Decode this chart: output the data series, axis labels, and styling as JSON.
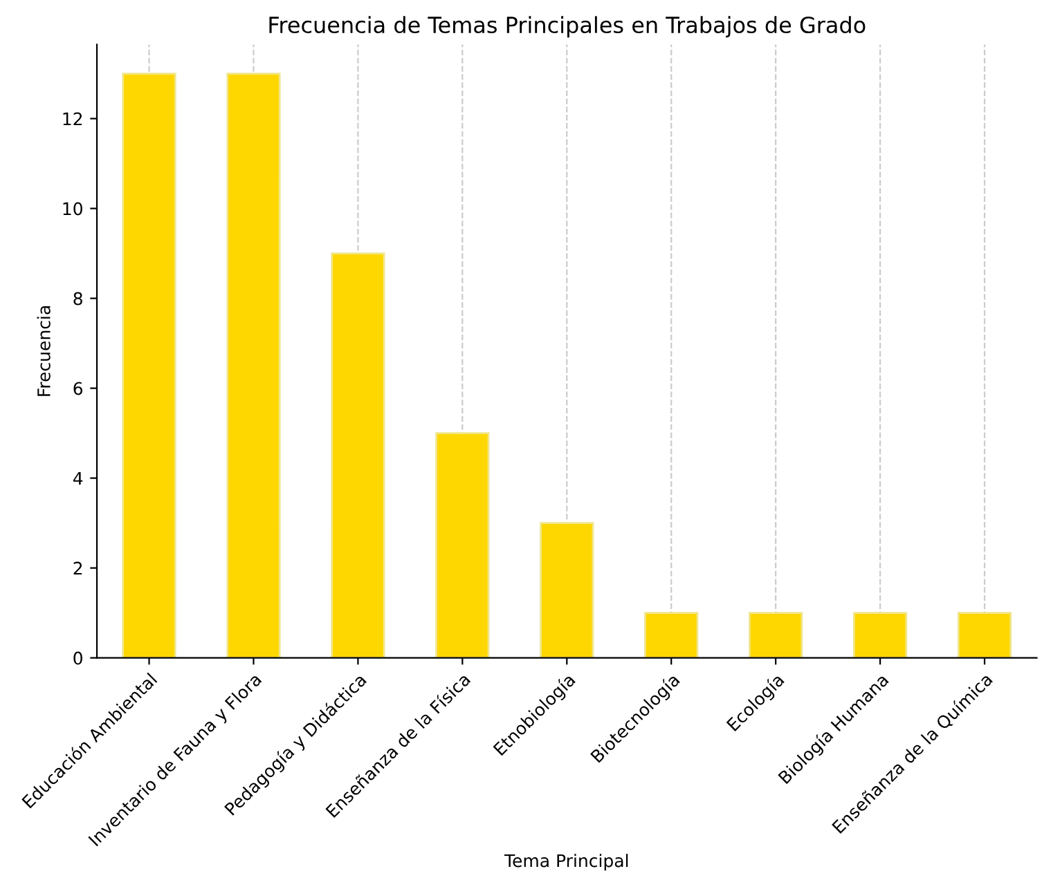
{
  "chart_data": {
    "type": "bar",
    "title": "Frecuencia de Temas Principales en Trabajos de Grado",
    "xlabel": "Tema Principal",
    "ylabel": "Frecuencia",
    "categories": [
      "Educación Ambiental",
      "Inventario de Fauna y Flora",
      "Pedagogía y Didáctica",
      "Enseñanza de la Física",
      "Etnobiología",
      "Biotecnología",
      "Ecología",
      "Biología Humana",
      "Enseñanza de la Química"
    ],
    "values": [
      13,
      13,
      9,
      5,
      3,
      1,
      1,
      1,
      1
    ],
    "color": "#ffd700",
    "ylim": [
      0,
      13.65
    ],
    "yticks": [
      0,
      2,
      4,
      6,
      8,
      10,
      12
    ],
    "grid": "x"
  }
}
